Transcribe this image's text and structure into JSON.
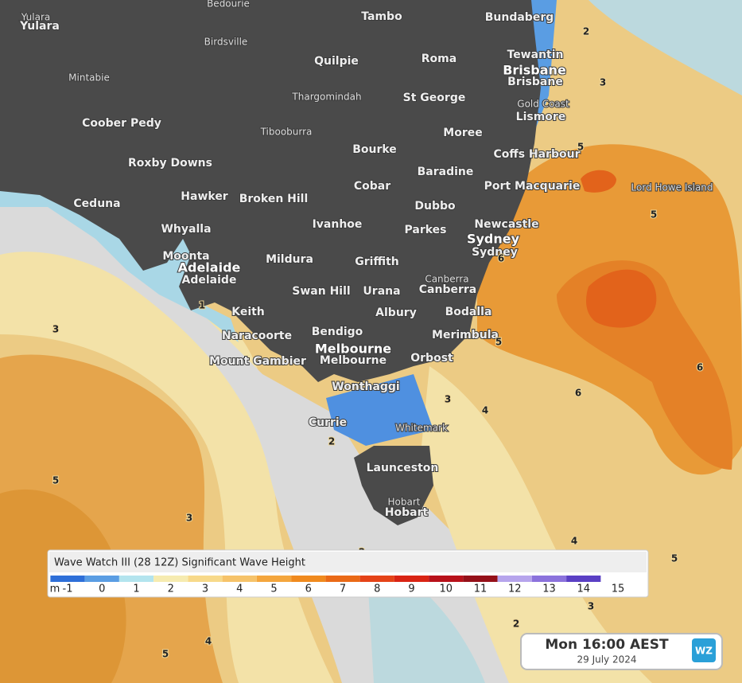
{
  "map": {
    "places": [
      "Yulara",
      "Yulara",
      "Bedourie",
      "Tambo",
      "Bundaberg",
      "Birdsville",
      "Quilpie",
      "Roma",
      "Tewantin",
      "Brisbane",
      "Brisbane",
      "Mintabie",
      "Thargomindah",
      "St George",
      "Gold Coast",
      "Lismore",
      "Coober Pedy",
      "Tibooburra",
      "Moree",
      "Bourke",
      "Coffs Harbour",
      "Roxby Downs",
      "Baradine",
      "Cobar",
      "Port Macquarie",
      "Lord Howe Island",
      "Hawker",
      "Broken Hill",
      "Ceduna",
      "Dubbo",
      "Ivanhoe",
      "Newcastle",
      "Whyalla",
      "Parkes",
      "Sydney",
      "Sydney",
      "Moonta",
      "Adelaide",
      "Mildura",
      "Griffith",
      "Adelaide",
      "Canberra",
      "Canberra",
      "Swan Hill",
      "Urana",
      "Keith",
      "Albury",
      "Bodalla",
      "Naracoorte",
      "Bendigo",
      "Merimbula",
      "Melbourne",
      "Melbourne",
      "Orbost",
      "Mount Gambier",
      "Wonthaggi",
      "Currie",
      "Whitemark",
      "Launceston",
      "Hobart",
      "Hobart"
    ],
    "contour_labels": [
      2,
      3,
      5,
      5,
      6,
      5,
      6,
      6,
      3,
      4,
      3,
      1,
      2,
      5,
      3,
      2,
      4,
      5,
      3,
      2,
      4,
      5
    ]
  },
  "legend": {
    "title": "Wave Watch III (28 12Z) Significant Wave Height",
    "unit": "m",
    "ticks": [
      -1,
      0,
      1,
      2,
      3,
      4,
      5,
      6,
      7,
      8,
      9,
      10,
      11,
      12,
      13,
      14,
      15
    ],
    "colors": [
      "#2e6fd8",
      "#5a9de3",
      "#b3e4ee",
      "#f6ebb0",
      "#f7d98a",
      "#f6c36a",
      "#f4a63d",
      "#f08a1e",
      "#ea6a17",
      "#e54318",
      "#d92414",
      "#b8111a",
      "#951019",
      "#b6a4ec",
      "#8b72dc",
      "#5a3fc4"
    ]
  },
  "timebox": {
    "time": "Mon 16:00 AEST",
    "date": "29 July 2024",
    "logo": "WZ"
  }
}
